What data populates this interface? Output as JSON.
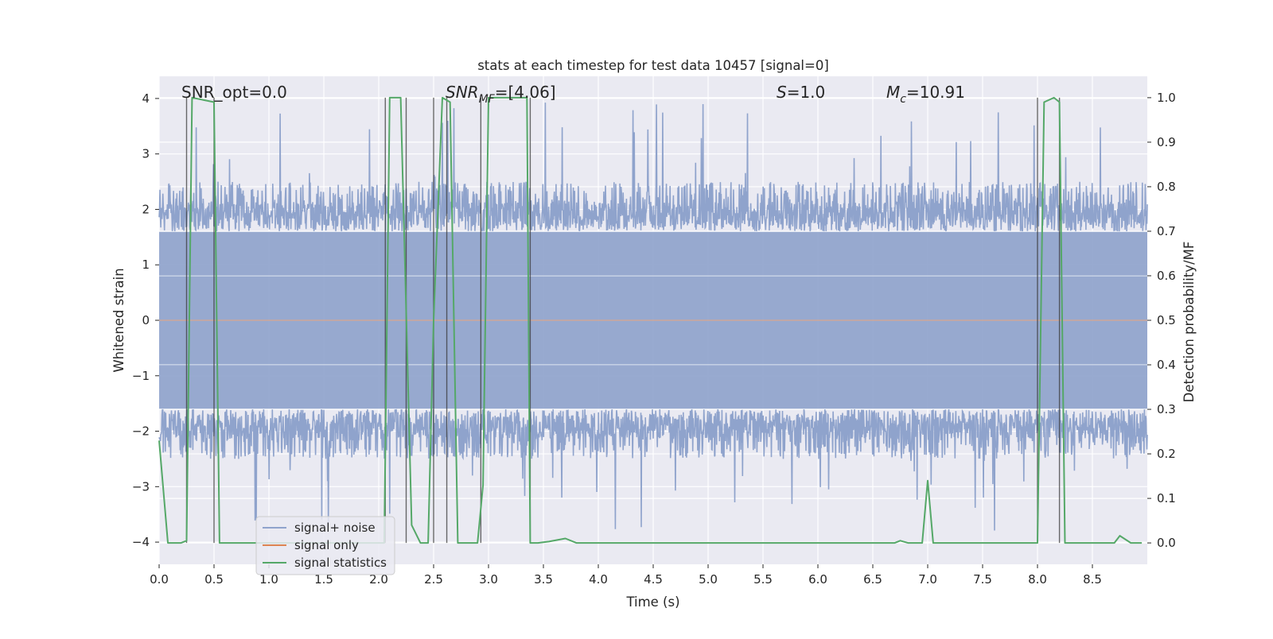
{
  "chart_data": {
    "type": "line",
    "title": "stats at each timestep for test data 10457 [signal=0]",
    "xlabel": "Time (s)",
    "ylabel": "Whitened strain",
    "y2label": "Detection probability/MF",
    "xlim": [
      0.0,
      9.0
    ],
    "ylim": [
      -4.4,
      4.4
    ],
    "y2lim": [
      -0.048,
      1.048
    ],
    "xticks": [
      0.0,
      0.5,
      1.0,
      1.5,
      2.0,
      2.5,
      3.0,
      3.5,
      4.0,
      4.5,
      5.0,
      5.5,
      6.0,
      6.5,
      7.0,
      7.5,
      8.0,
      8.5
    ],
    "xtick_labels": [
      "0.0",
      "0.5",
      "1.0",
      "1.5",
      "2.0",
      "2.5",
      "3.0",
      "3.5",
      "4.0",
      "4.5",
      "5.0",
      "5.5",
      "6.0",
      "6.5",
      "7.0",
      "7.5",
      "8.0",
      "8.5"
    ],
    "yticks": [
      -4,
      -3,
      -2,
      -1,
      0,
      1,
      2,
      3,
      4
    ],
    "ytick_labels": [
      "−4",
      "−3",
      "−2",
      "−1",
      "0",
      "1",
      "2",
      "3",
      "4"
    ],
    "y2ticks": [
      0.0,
      0.1,
      0.2,
      0.3,
      0.4,
      0.5,
      0.6,
      0.7,
      0.8,
      0.9,
      1.0
    ],
    "y2tick_labels": [
      "0.0",
      "0.1",
      "0.2",
      "0.3",
      "0.4",
      "0.5",
      "0.6",
      "0.7",
      "0.8",
      "0.9",
      "1.0"
    ],
    "legend_position": "lower-left",
    "series": [
      {
        "name": "signal+ noise",
        "color": "#8fa3cc",
        "axis": "left",
        "style": "noise",
        "amplitude_envelope": {
          "core_abs": 1.6,
          "typical_peak": 2.5,
          "max_peak": 4.0,
          "min_peak": -3.8
        }
      },
      {
        "name": "signal only",
        "color": "#dd8452",
        "axis": "left",
        "style": "flat",
        "x": [
          0.0,
          9.0
        ],
        "y": [
          0.0,
          0.0
        ]
      },
      {
        "name": "signal statistics",
        "color": "#55a868",
        "axis": "right",
        "x": [
          0.0,
          0.08,
          0.2,
          0.25,
          0.3,
          0.5,
          0.55,
          2.0,
          2.05,
          2.1,
          2.2,
          2.3,
          2.38,
          2.45,
          2.5,
          2.58,
          2.65,
          2.72,
          2.78,
          2.9,
          2.95,
          3.0,
          3.35,
          3.38,
          3.45,
          3.55,
          3.7,
          3.8,
          5.0,
          6.0,
          6.7,
          6.75,
          6.82,
          6.95,
          7.0,
          7.05,
          7.12,
          8.0,
          8.06,
          8.15,
          8.2,
          8.25,
          8.32,
          8.5,
          8.7,
          8.75,
          8.85,
          8.95
        ],
        "y": [
          0.23,
          0.0,
          0.0,
          0.005,
          1.0,
          0.99,
          0.0,
          0.0,
          0.0,
          1.0,
          1.0,
          0.04,
          0.0,
          0.0,
          0.5,
          1.0,
          0.99,
          0.0,
          0.0,
          0.0,
          0.13,
          1.0,
          1.0,
          0.0,
          0.0,
          0.003,
          0.01,
          0.0,
          0.0,
          0.0,
          0.0,
          0.005,
          0.0,
          0.0,
          0.14,
          0.0,
          0.0,
          0.0,
          0.99,
          1.0,
          0.99,
          0.0,
          0.0,
          0.0,
          0.0,
          0.016,
          0.0,
          0.0
        ]
      }
    ],
    "vertical_markers": [
      0.25,
      0.5,
      2.06,
      2.25,
      2.5,
      2.62,
      2.93,
      3.38,
      8.0,
      8.2
    ],
    "annotations": [
      {
        "id": "snr-opt",
        "text": "SNR_opt=0.0",
        "x": 0.2
      },
      {
        "id": "snr-mf",
        "text": "SNR",
        "sub": "MF",
        "rest": "=[4.06]",
        "x": 2.6
      },
      {
        "id": "s",
        "text": "S",
        "rest": "=1.0",
        "x": 5.6
      },
      {
        "id": "mc",
        "text": "M",
        "sub": "c",
        "rest": "=10.91",
        "x": 6.6
      }
    ]
  },
  "colors": {
    "plot_background": "#eaeaf2",
    "grid": "#ffffff",
    "marker_line": "#3a3a3a",
    "noise": "#8fa3cc",
    "signal_only": "#dd8452",
    "statistics": "#55a868"
  }
}
